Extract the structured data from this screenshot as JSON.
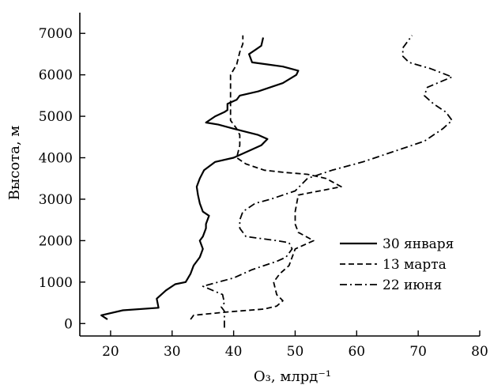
{
  "chart_data": {
    "type": "line",
    "title": "",
    "xlabel": "O₃, млрд⁻¹",
    "ylabel": "Высота, м",
    "xlim": [
      15,
      80
    ],
    "ylim": [
      -300,
      7500
    ],
    "xticks": [
      20,
      30,
      40,
      50,
      60,
      70,
      80
    ],
    "yticks": [
      0,
      1000,
      2000,
      3000,
      4000,
      5000,
      6000,
      7000
    ],
    "grid": false,
    "legend_position": "lower-right",
    "series": [
      {
        "name": "30 января",
        "style": "solid",
        "points": [
          [
            19.5,
            100
          ],
          [
            18.5,
            200
          ],
          [
            22,
            320
          ],
          [
            27.8,
            380
          ],
          [
            27.5,
            600
          ],
          [
            29,
            800
          ],
          [
            30.5,
            950
          ],
          [
            32.2,
            1000
          ],
          [
            33,
            1200
          ],
          [
            33.5,
            1400
          ],
          [
            34,
            1500
          ],
          [
            34.5,
            1600
          ],
          [
            35,
            1800
          ],
          [
            34.5,
            2000
          ],
          [
            35,
            2100
          ],
          [
            35.5,
            2300
          ],
          [
            35.5,
            2400
          ],
          [
            36,
            2600
          ],
          [
            35,
            2700
          ],
          [
            34.5,
            2900
          ],
          [
            34.2,
            3100
          ],
          [
            34,
            3300
          ],
          [
            34.5,
            3500
          ],
          [
            35.2,
            3700
          ],
          [
            37,
            3900
          ],
          [
            40,
            4000
          ],
          [
            43,
            4200
          ],
          [
            44.5,
            4300
          ],
          [
            45.5,
            4450
          ],
          [
            44,
            4550
          ],
          [
            40,
            4700
          ],
          [
            37.5,
            4800
          ],
          [
            35.5,
            4850
          ],
          [
            37,
            5000
          ],
          [
            38.5,
            5100
          ],
          [
            39,
            5150
          ],
          [
            39,
            5300
          ],
          [
            40.5,
            5400
          ],
          [
            41,
            5500
          ],
          [
            44,
            5600
          ],
          [
            48,
            5800
          ],
          [
            50.2,
            6000
          ],
          [
            50.5,
            6100
          ],
          [
            48,
            6200
          ],
          [
            45.5,
            6250
          ],
          [
            43,
            6300
          ],
          [
            42.5,
            6500
          ],
          [
            43.5,
            6600
          ],
          [
            44.5,
            6700
          ],
          [
            44.8,
            6900
          ]
        ]
      },
      {
        "name": "13 марта",
        "style": "dashed",
        "points": [
          [
            33,
            100
          ],
          [
            33.5,
            200
          ],
          [
            39,
            280
          ],
          [
            45,
            350
          ],
          [
            47,
            420
          ],
          [
            48,
            550
          ],
          [
            47,
            700
          ],
          [
            46.5,
            1000
          ],
          [
            47.5,
            1200
          ],
          [
            49,
            1400
          ],
          [
            49.5,
            1600
          ],
          [
            50,
            1800
          ],
          [
            53,
            2000
          ],
          [
            50.5,
            2200
          ],
          [
            50,
            2400
          ],
          [
            50,
            2700
          ],
          [
            50.5,
            3100
          ],
          [
            57.5,
            3300
          ],
          [
            55,
            3500
          ],
          [
            52,
            3600
          ],
          [
            48,
            3650
          ],
          [
            45,
            3700
          ],
          [
            42,
            3850
          ],
          [
            40.5,
            4000
          ],
          [
            41,
            4300
          ],
          [
            41,
            4550
          ],
          [
            40.5,
            4700
          ],
          [
            39.5,
            4900
          ],
          [
            39.5,
            5100
          ],
          [
            39.5,
            5400
          ],
          [
            39.5,
            5700
          ],
          [
            39.5,
            6000
          ],
          [
            40.5,
            6250
          ],
          [
            41,
            6550
          ],
          [
            41.5,
            6750
          ],
          [
            41.5,
            6950
          ]
        ]
      },
      {
        "name": "22 июня",
        "style": "dash-dot",
        "points": [
          [
            38.5,
            -100
          ],
          [
            38.5,
            100
          ],
          [
            38.5,
            200
          ],
          [
            38.5,
            300
          ],
          [
            38,
            400
          ],
          [
            38.5,
            500
          ],
          [
            38.2,
            700
          ],
          [
            35,
            900
          ],
          [
            37.5,
            1000
          ],
          [
            40,
            1100
          ],
          [
            43,
            1300
          ],
          [
            47,
            1500
          ],
          [
            48.5,
            1600
          ],
          [
            49.5,
            1800
          ],
          [
            49,
            1950
          ],
          [
            47,
            2000
          ],
          [
            42,
            2100
          ],
          [
            41,
            2300
          ],
          [
            41,
            2500
          ],
          [
            41.5,
            2700
          ],
          [
            43.5,
            2900
          ],
          [
            46,
            3000
          ],
          [
            50,
            3200
          ],
          [
            52,
            3500
          ],
          [
            56,
            3700
          ],
          [
            61,
            3900
          ],
          [
            66,
            4150
          ],
          [
            71,
            4400
          ],
          [
            74,
            4700
          ],
          [
            75.5,
            4900
          ],
          [
            74.5,
            5100
          ],
          [
            72.5,
            5300
          ],
          [
            71,
            5500
          ],
          [
            71.5,
            5700
          ],
          [
            75.5,
            5950
          ],
          [
            72,
            6150
          ],
          [
            68.5,
            6300
          ],
          [
            67.5,
            6450
          ],
          [
            67.5,
            6650
          ],
          [
            68.5,
            6850
          ],
          [
            69,
            6950
          ]
        ]
      }
    ]
  }
}
